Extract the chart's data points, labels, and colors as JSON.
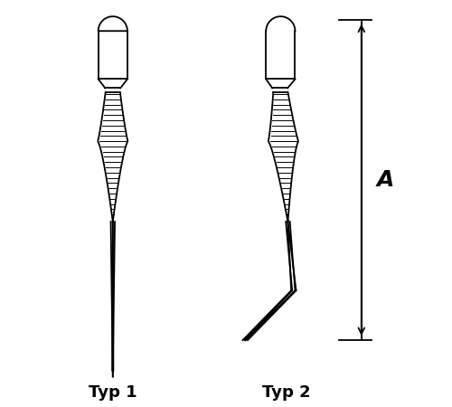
{
  "bg_color": "#ffffff",
  "line_color": "#000000",
  "label1": "Typ 1",
  "label2": "Typ 2",
  "dimension_label": "A",
  "label_fontsize": 13,
  "label_fontweight": "bold",
  "fig_w": 5.0,
  "fig_h": 4.5,
  "dpi": 100
}
